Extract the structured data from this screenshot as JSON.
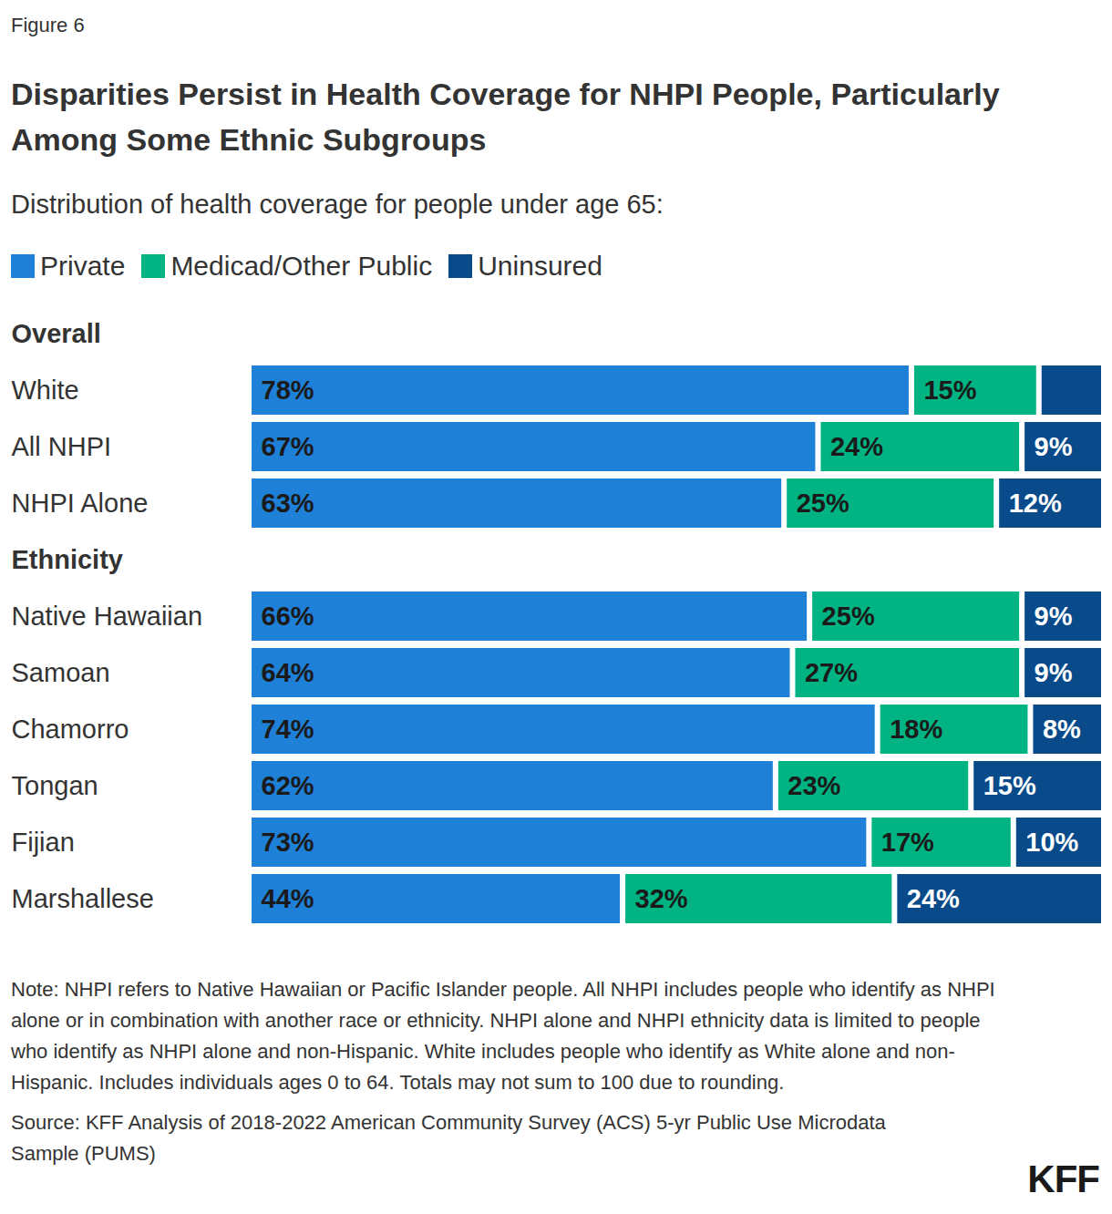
{
  "chart_data": {
    "type": "bar",
    "orientation": "horizontal",
    "stacked": true,
    "data_labels": true,
    "tick_labels": false,
    "legend": "top",
    "figure_label": "Figure 6",
    "title": "Disparities Persist in Health Coverage for NHPI People, Particularly Among Some Ethnic Subgroups",
    "subtitle": "Distribution of health coverage for people under age 65:",
    "groups": [
      {
        "name": "Overall",
        "categories": [
          "White",
          "All NHPI",
          "NHPI Alone"
        ]
      },
      {
        "name": "Ethnicity",
        "categories": [
          "Native Hawaiian",
          "Samoan",
          "Chamorro",
          "Tongan",
          "Fijian",
          "Marshallese"
        ]
      }
    ],
    "categories": [
      "White",
      "All NHPI",
      "NHPI Alone",
      "Native Hawaiian",
      "Samoan",
      "Chamorro",
      "Tongan",
      "Fijian",
      "Marshallese"
    ],
    "xlim": [
      0,
      100
    ],
    "series": [
      {
        "name": "Private",
        "color": "#1f80d8",
        "values": [
          78,
          67,
          63,
          66,
          64,
          74,
          62,
          73,
          44
        ],
        "value_labels": [
          "78%",
          "67%",
          "63%",
          "66%",
          "64%",
          "74%",
          "62%",
          "73%",
          "44%"
        ]
      },
      {
        "name": "Medicad/Other Public",
        "color": "#00b383",
        "values": [
          15,
          24,
          25,
          25,
          27,
          18,
          23,
          17,
          32
        ],
        "value_labels": [
          "15%",
          "24%",
          "25%",
          "25%",
          "27%",
          "18%",
          "23%",
          "17%",
          "32%"
        ]
      },
      {
        "name": "Uninsured",
        "color": "#084a8a",
        "values": [
          7,
          9,
          12,
          9,
          9,
          8,
          15,
          10,
          24
        ],
        "value_labels": [
          null,
          "9%",
          "12%",
          "9%",
          "9%",
          "8%",
          "15%",
          "10%",
          "24%"
        ]
      }
    ],
    "note": "Note: NHPI refers to Native Hawaiian or Pacific Islander people. All NHPI includes people who identify as NHPI alone or in combination with another race or ethnicity. NHPI alone and NHPI ethnicity data is limited to people who identify as NHPI alone and non-Hispanic. White includes people who identify as White alone and non-Hispanic. Includes individuals ages 0 to 64. Totals may not sum to 100 due to rounding.",
    "source": "Source: KFF Analysis of 2018-2022 American Community Survey (ACS) 5-yr Public Use Microdata Sample (PUMS)",
    "logo": "KFF"
  }
}
